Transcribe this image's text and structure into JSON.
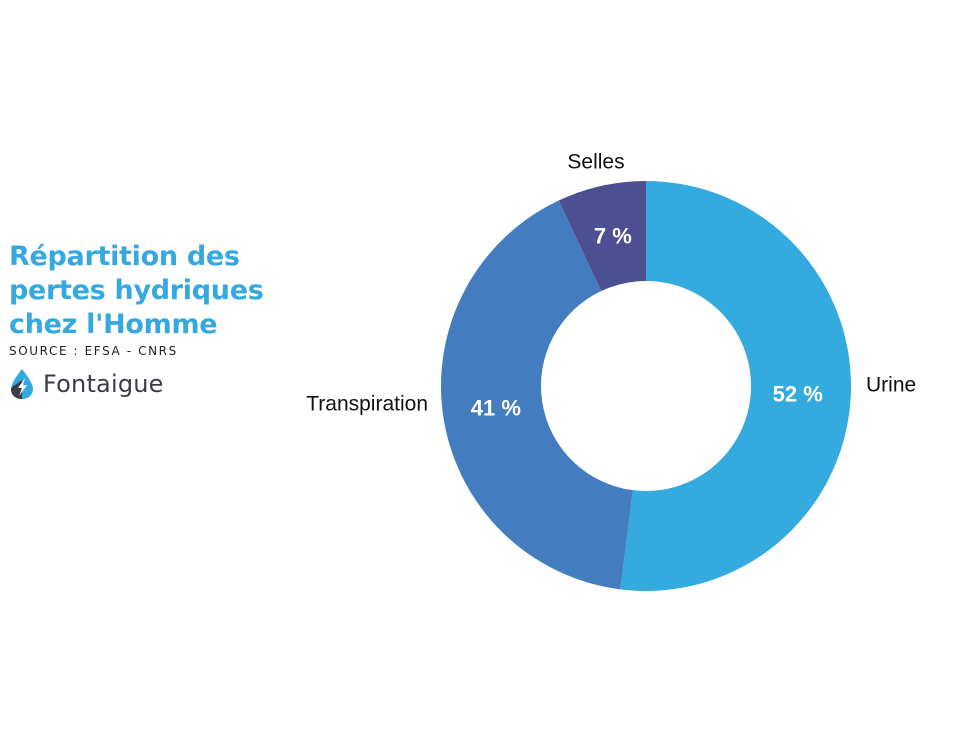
{
  "chart_data": {
    "type": "pie",
    "title": "Répartition des pertes hydriques chez l'Homme",
    "source": "SOURCE : EFSA - CNRS",
    "brand": "Fontaigue",
    "categories": [
      "Urine",
      "Transpiration",
      "Selles"
    ],
    "values": [
      52,
      41,
      7
    ],
    "value_labels": [
      "52 %",
      "41 %",
      "7 %"
    ],
    "colors": [
      "#34aadf",
      "#437dbf",
      "#4c4f91"
    ],
    "donut": true,
    "legend": "none"
  }
}
